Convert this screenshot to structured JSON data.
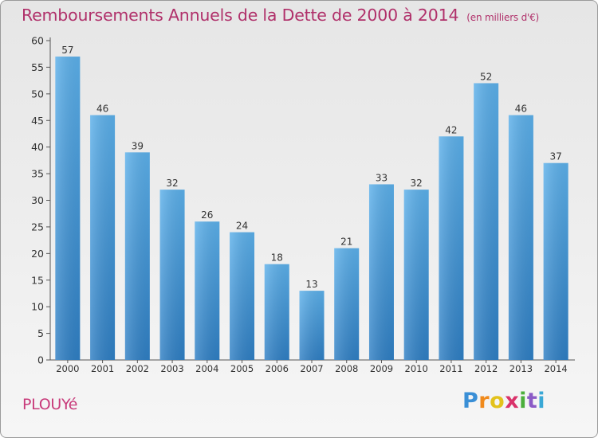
{
  "title": "Remboursements Annuels de la Dette de 2000 à 2014",
  "subtitle": "(en milliers d'€)",
  "town": "PLOUYé",
  "logo": {
    "letters": [
      "P",
      "r",
      "o",
      "x",
      "i",
      "t",
      "i"
    ]
  },
  "colors": {
    "title": "#b0306a",
    "bar_top": "#5cb0ea",
    "bar_bottom": "#2f7fc4"
  },
  "chart_data": {
    "type": "bar",
    "title": "Remboursements Annuels de la Dette de 2000 à 2014",
    "subtitle": "(en milliers d'€)",
    "xlabel": "",
    "ylabel": "",
    "categories": [
      "2000",
      "2001",
      "2002",
      "2003",
      "2004",
      "2005",
      "2006",
      "2007",
      "2008",
      "2009",
      "2010",
      "2011",
      "2012",
      "2013",
      "2014"
    ],
    "values": [
      57,
      46,
      39,
      32,
      26,
      24,
      18,
      13,
      21,
      33,
      32,
      42,
      52,
      46,
      37
    ],
    "ylim": [
      0,
      60
    ],
    "yticks": [
      0,
      5,
      10,
      15,
      20,
      25,
      30,
      35,
      40,
      45,
      50,
      55,
      60
    ],
    "grid": false,
    "data_labels": true
  }
}
